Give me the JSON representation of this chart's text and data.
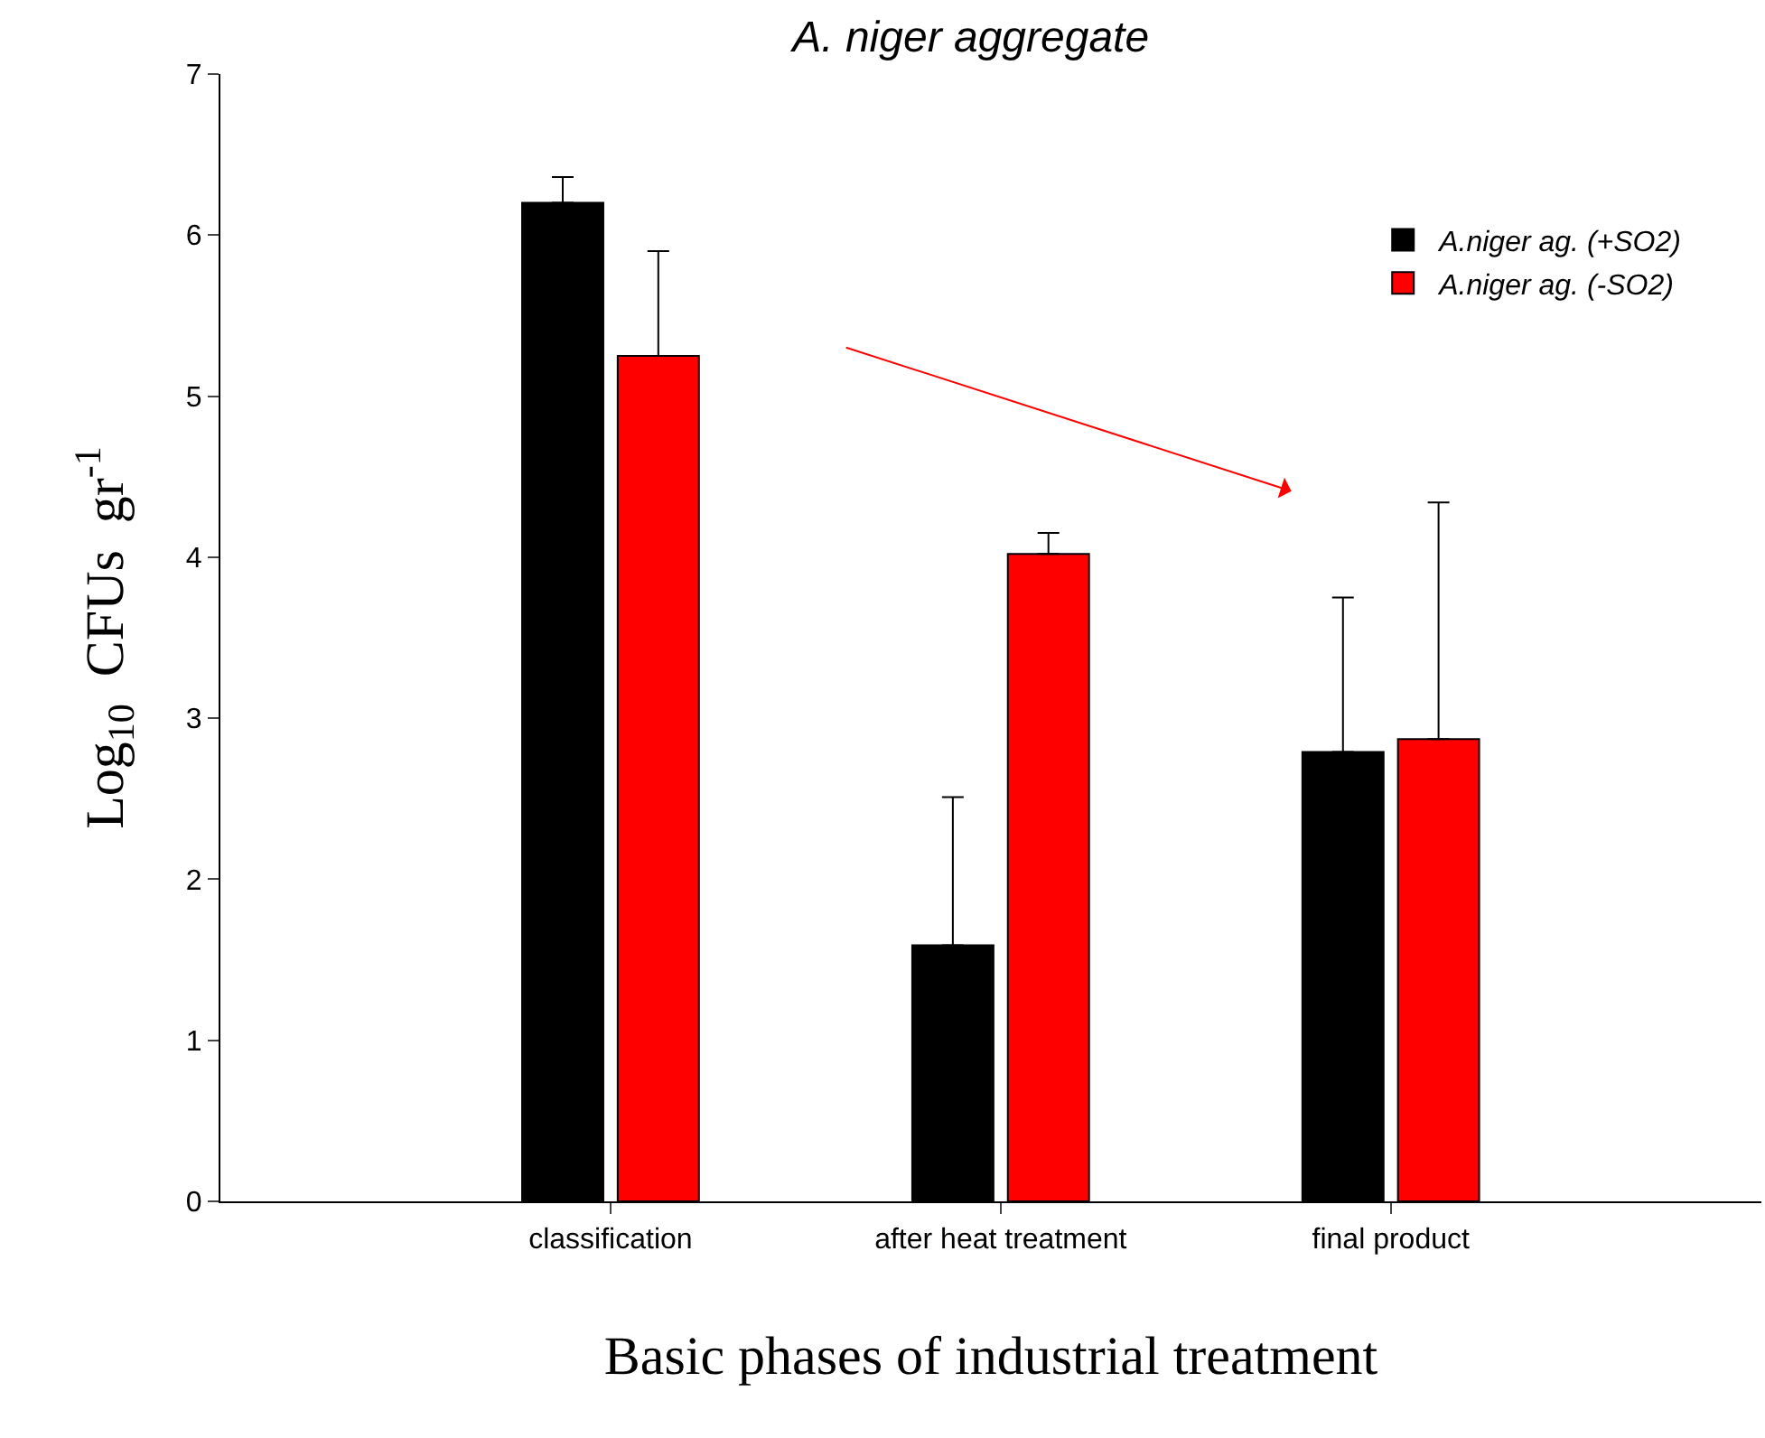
{
  "chart_data": {
    "type": "bar",
    "title": "A. niger aggregate",
    "xlabel": "Basic phases of industrial treatment",
    "ylabel": "Log$_{10}$  CFUs  gr$^{-1}$",
    "categories": [
      "classification",
      "after heat treatment",
      "final product"
    ],
    "series": [
      {
        "name": "A.niger ag. (+SO2)",
        "color": "#000000",
        "values": [
          6.2,
          1.59,
          2.79
        ],
        "errors": [
          [
            6.2,
            6.36
          ],
          [
            1.59,
            2.51
          ],
          [
            2.79,
            3.75
          ]
        ]
      },
      {
        "name": "A.niger ag. (-SO2)",
        "color": "#ff0000",
        "values": [
          5.25,
          4.02,
          2.87
        ],
        "errors": [
          [
            5.25,
            5.9
          ],
          [
            4.02,
            4.15
          ],
          [
            2.87,
            4.34
          ]
        ]
      }
    ],
    "ylim": [
      0,
      7
    ],
    "yticks": [
      0,
      1,
      2,
      3,
      4,
      5,
      6,
      7
    ],
    "legend": "top right"
  }
}
